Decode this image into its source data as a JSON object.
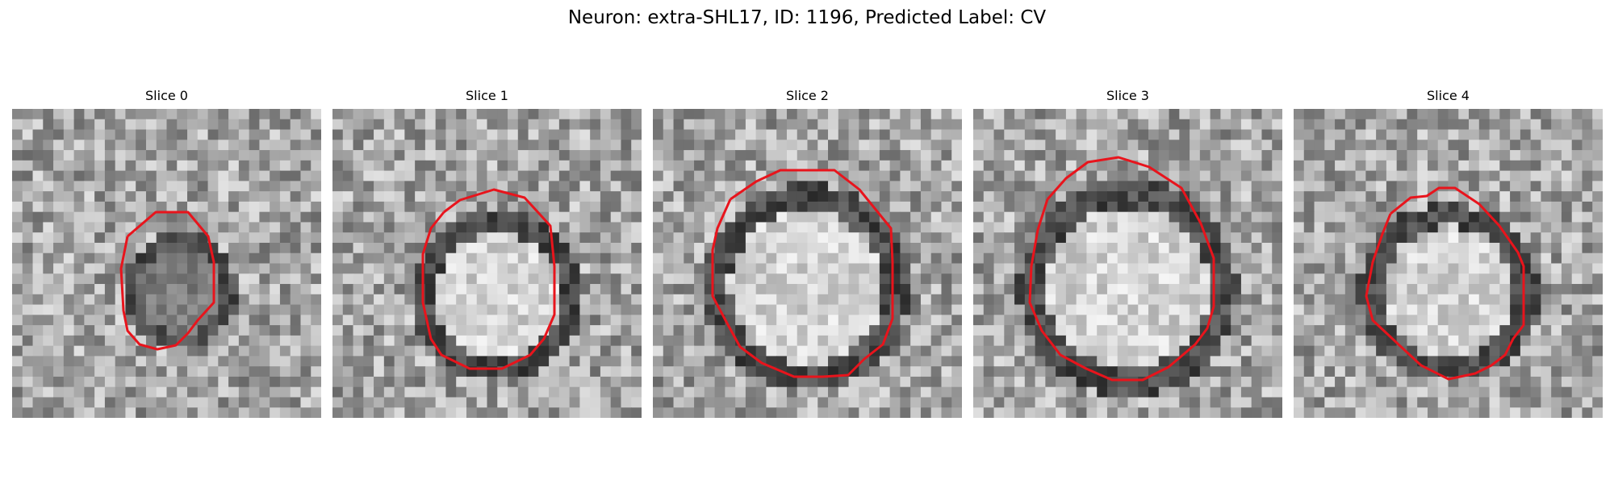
{
  "figure": {
    "title": "Neuron: extra-SHL17, ID: 1196, Predicted Label: CV"
  },
  "colors": {
    "outline": "#e8141c",
    "background": "#ffffff"
  },
  "panels": [
    {
      "title": "Slice 0",
      "seed": 11,
      "interior": "dark"
    },
    {
      "title": "Slice 1",
      "seed": 23,
      "interior": "bright"
    },
    {
      "title": "Slice 2",
      "seed": 37,
      "interior": "bright"
    },
    {
      "title": "Slice 3",
      "seed": 41,
      "interior": "bright"
    },
    {
      "title": "Slice 4",
      "seed": 53,
      "interior": "bright"
    }
  ]
}
